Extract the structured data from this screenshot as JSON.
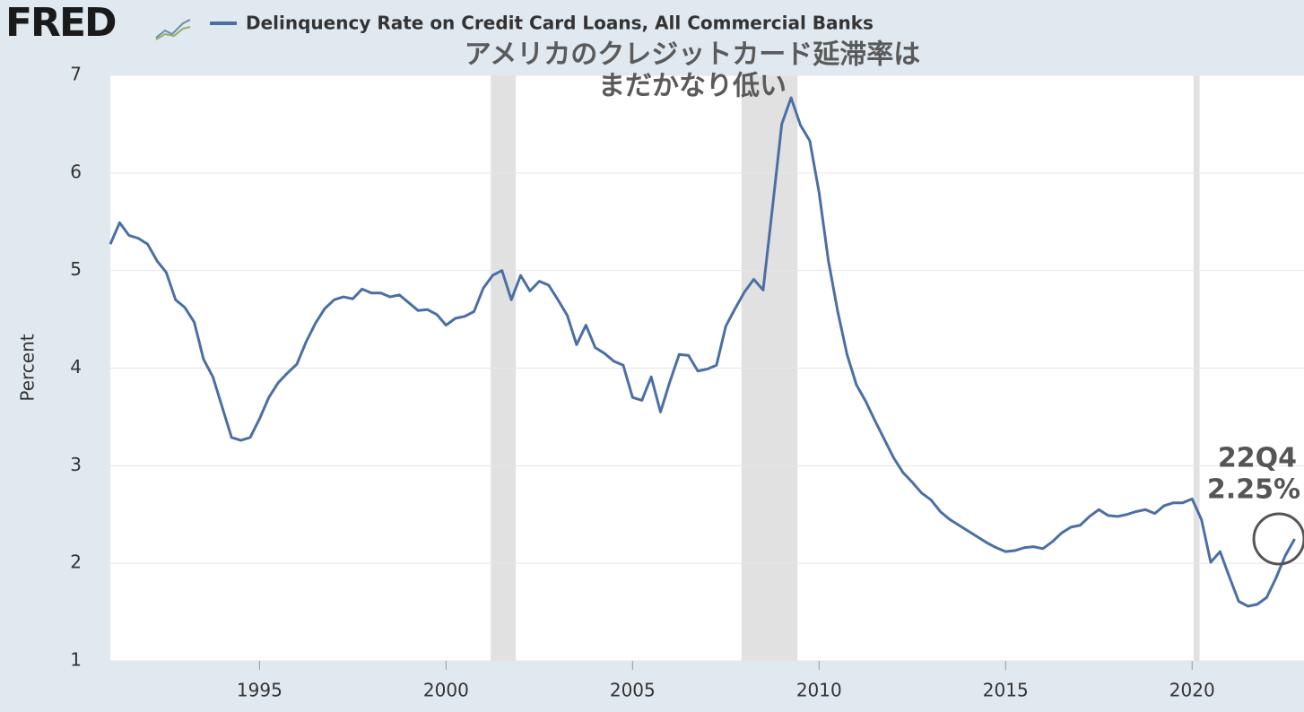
{
  "chart_data": {
    "type": "line",
    "logo": "FRED",
    "y_label": "Percent",
    "annotations": [
      "アメリカのクレジットカード延滞率は",
      "まだかなり低い",
      "22Q4",
      "2.25%"
    ],
    "x": [
      1991,
      1991.25,
      1991.5,
      1991.75,
      1992,
      1992.25,
      1992.5,
      1992.75,
      1993,
      1993.25,
      1993.5,
      1993.75,
      1994,
      1994.25,
      1994.5,
      1994.75,
      1995,
      1995.25,
      1995.5,
      1995.75,
      1996,
      1996.25,
      1996.5,
      1996.75,
      1997,
      1997.25,
      1997.5,
      1997.75,
      1998,
      1998.25,
      1998.5,
      1998.75,
      1999,
      1999.25,
      1999.5,
      1999.75,
      2000,
      2000.25,
      2000.5,
      2000.75,
      2001,
      2001.25,
      2001.5,
      2001.75,
      2002,
      2002.25,
      2002.5,
      2002.75,
      2003,
      2003.25,
      2003.5,
      2003.75,
      2004,
      2004.25,
      2004.5,
      2004.75,
      2005,
      2005.25,
      2005.5,
      2005.75,
      2006,
      2006.25,
      2006.5,
      2006.75,
      2007,
      2007.25,
      2007.5,
      2007.75,
      2008,
      2008.25,
      2008.5,
      2008.75,
      2009,
      2009.25,
      2009.5,
      2009.75,
      2010,
      2010.25,
      2010.5,
      2010.75,
      2011,
      2011.25,
      2011.5,
      2011.75,
      2012,
      2012.25,
      2012.5,
      2012.75,
      2013,
      2013.25,
      2013.5,
      2013.75,
      2014,
      2014.25,
      2014.5,
      2014.75,
      2015,
      2015.25,
      2015.5,
      2015.75,
      2016,
      2016.25,
      2016.5,
      2016.75,
      2017,
      2017.25,
      2017.5,
      2017.75,
      2018,
      2018.25,
      2018.5,
      2018.75,
      2019,
      2019.25,
      2019.5,
      2019.75,
      2020,
      2020.25,
      2020.5,
      2020.75,
      2021,
      2021.25,
      2021.5,
      2021.75,
      2022,
      2022.25,
      2022.5,
      2022.75
    ],
    "series": [
      {
        "name": "Delinquency Rate on Credit Card Loans, All Commercial Banks",
        "color": "#4b6fa5",
        "values": [
          5.27,
          5.49,
          5.36,
          5.33,
          5.27,
          5.1,
          4.98,
          4.7,
          4.62,
          4.47,
          4.09,
          3.91,
          3.6,
          3.29,
          3.26,
          3.29,
          3.48,
          3.7,
          3.85,
          3.95,
          4.04,
          4.27,
          4.46,
          4.61,
          4.7,
          4.73,
          4.71,
          4.81,
          4.77,
          4.77,
          4.73,
          4.75,
          4.67,
          4.59,
          4.6,
          4.55,
          4.44,
          4.51,
          4.53,
          4.58,
          4.82,
          4.95,
          5.0,
          4.7,
          4.95,
          4.79,
          4.89,
          4.85,
          4.7,
          4.54,
          4.24,
          4.44,
          4.21,
          4.15,
          4.07,
          4.03,
          3.7,
          3.67,
          3.91,
          3.55,
          3.86,
          4.14,
          4.13,
          3.97,
          3.99,
          4.03,
          4.43,
          4.61,
          4.78,
          4.91,
          4.8,
          5.64,
          6.5,
          6.77,
          6.49,
          6.33,
          5.8,
          5.1,
          4.58,
          4.14,
          3.83,
          3.66,
          3.46,
          3.27,
          3.08,
          2.93,
          2.83,
          2.72,
          2.65,
          2.53,
          2.45,
          2.39,
          2.33,
          2.27,
          2.21,
          2.16,
          2.12,
          2.13,
          2.16,
          2.17,
          2.15,
          2.22,
          2.31,
          2.37,
          2.39,
          2.48,
          2.55,
          2.49,
          2.48,
          2.5,
          2.53,
          2.55,
          2.51,
          2.59,
          2.62,
          2.62,
          2.66,
          2.45,
          2.01,
          2.12,
          1.86,
          1.61,
          1.56,
          1.58,
          1.65,
          1.85,
          2.08,
          2.25
        ]
      }
    ],
    "recessions": [
      [
        2001.2,
        2001.87
      ],
      [
        2007.92,
        2009.42
      ],
      [
        2020.04,
        2020.2
      ]
    ],
    "recession_color": "#e1e1e1",
    "xlim": [
      1991,
      2023
    ],
    "xticks": [
      1995,
      2000,
      2005,
      2010,
      2015,
      2020
    ],
    "ylim": [
      1,
      7
    ],
    "yticks": [
      1,
      2,
      3,
      4,
      5,
      6,
      7
    ],
    "grid": true
  }
}
